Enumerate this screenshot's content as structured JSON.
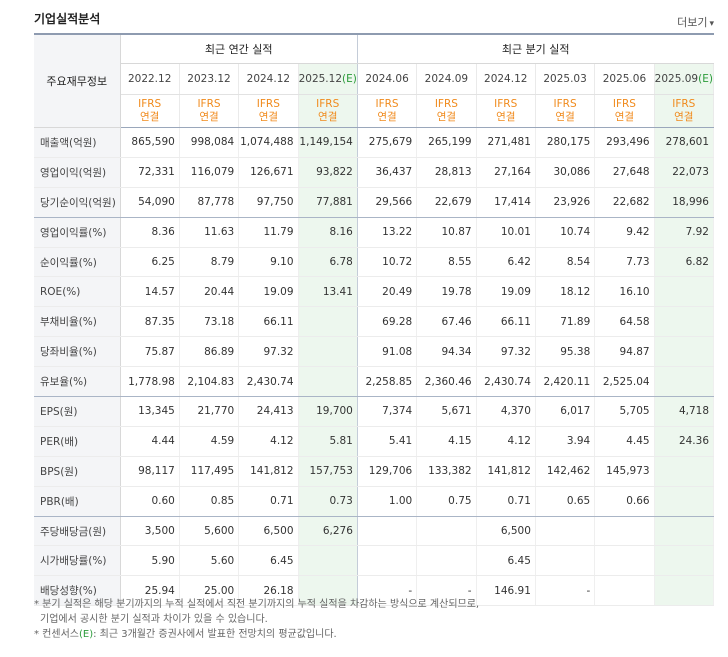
{
  "page": {
    "title": "기업실적분석",
    "more": "더보기",
    "more_arrow": "▾"
  },
  "header": {
    "row_label": "주요재무정보",
    "annual_group": "최근 연간 실적",
    "quarter_group": "최근 분기 실적",
    "annual_periods": [
      {
        "year": "2022.12",
        "est": ""
      },
      {
        "year": "2023.12",
        "est": ""
      },
      {
        "year": "2024.12",
        "est": ""
      },
      {
        "year": "2025.12",
        "est": "(E)"
      }
    ],
    "quarter_periods": [
      {
        "year": "2024.06",
        "est": ""
      },
      {
        "year": "2024.09",
        "est": ""
      },
      {
        "year": "2024.12",
        "est": ""
      },
      {
        "year": "2025.03",
        "est": ""
      },
      {
        "year": "2025.06",
        "est": ""
      },
      {
        "year": "2025.09",
        "est": "(E)"
      }
    ],
    "ifrs_line1": "IFRS",
    "ifrs_line2": "연결"
  },
  "rows": [
    {
      "label": "매출액(억원)",
      "values": [
        "865,590",
        "998,084",
        "1,074,488",
        "1,149,154",
        "275,679",
        "265,199",
        "271,481",
        "280,175",
        "293,496",
        "278,601"
      ]
    },
    {
      "label": "영업이익(억원)",
      "values": [
        "72,331",
        "116,079",
        "126,671",
        "93,822",
        "36,437",
        "28,813",
        "27,164",
        "30,086",
        "27,648",
        "22,073"
      ]
    },
    {
      "label": "당기순이익(억원)",
      "values": [
        "54,090",
        "87,778",
        "97,750",
        "77,881",
        "29,566",
        "22,679",
        "17,414",
        "23,926",
        "22,682",
        "18,996"
      ]
    },
    {
      "label": "영업이익률(%)",
      "values": [
        "8.36",
        "11.63",
        "11.79",
        "8.16",
        "13.22",
        "10.87",
        "10.01",
        "10.74",
        "9.42",
        "7.92"
      ]
    },
    {
      "label": "순이익률(%)",
      "values": [
        "6.25",
        "8.79",
        "9.10",
        "6.78",
        "10.72",
        "8.55",
        "6.42",
        "8.54",
        "7.73",
        "6.82"
      ]
    },
    {
      "label": "ROE(%)",
      "values": [
        "14.57",
        "20.44",
        "19.09",
        "13.41",
        "20.49",
        "19.78",
        "19.09",
        "18.12",
        "16.10",
        ""
      ]
    },
    {
      "label": "부채비율(%)",
      "values": [
        "87.35",
        "73.18",
        "66.11",
        "",
        "69.28",
        "67.46",
        "66.11",
        "71.89",
        "64.58",
        ""
      ]
    },
    {
      "label": "당좌비율(%)",
      "values": [
        "75.87",
        "86.89",
        "97.32",
        "",
        "91.08",
        "94.34",
        "97.32",
        "95.38",
        "94.87",
        ""
      ]
    },
    {
      "label": "유보율(%)",
      "values": [
        "1,778.98",
        "2,104.83",
        "2,430.74",
        "",
        "2,258.85",
        "2,360.46",
        "2,430.74",
        "2,420.11",
        "2,525.04",
        ""
      ]
    },
    {
      "label": "EPS(원)",
      "values": [
        "13,345",
        "21,770",
        "24,413",
        "19,700",
        "7,374",
        "5,671",
        "4,370",
        "6,017",
        "5,705",
        "4,718"
      ]
    },
    {
      "label": "PER(배)",
      "values": [
        "4.44",
        "4.59",
        "4.12",
        "5.81",
        "5.41",
        "4.15",
        "4.12",
        "3.94",
        "4.45",
        "24.36"
      ]
    },
    {
      "label": "BPS(원)",
      "values": [
        "98,117",
        "117,495",
        "141,812",
        "157,753",
        "129,706",
        "133,382",
        "141,812",
        "142,462",
        "145,973",
        ""
      ]
    },
    {
      "label": "PBR(배)",
      "values": [
        "0.60",
        "0.85",
        "0.71",
        "0.73",
        "1.00",
        "0.75",
        "0.71",
        "0.65",
        "0.66",
        ""
      ]
    },
    {
      "label": "주당배당금(원)",
      "values": [
        "3,500",
        "5,600",
        "6,500",
        "6,276",
        "",
        "",
        "6,500",
        "",
        "",
        ""
      ]
    },
    {
      "label": "시가배당률(%)",
      "values": [
        "5.90",
        "5.60",
        "6.45",
        "",
        "",
        "",
        "6.45",
        "",
        "",
        ""
      ]
    },
    {
      "label": "배당성향(%)",
      "values": [
        "25.94",
        "25.00",
        "26.18",
        "",
        "-",
        "-",
        "146.91",
        "-",
        "",
        ""
      ]
    }
  ],
  "notes": {
    "line1": "* 분기 실적은 해당 분기까지의 누적 실적에서 직전 분기까지의 누적 실적을 차감하는 방식으로 계산되므로,",
    "line2": "기업에서 공시한 분기 실적과 차이가 있을 수 있습니다.",
    "line3_prefix": "* 컨센서스",
    "line3_mark": "(E)",
    "line3_suffix": ": 최근 3개월간 증권사에서 발표한 전망치의 평균값입니다."
  }
}
